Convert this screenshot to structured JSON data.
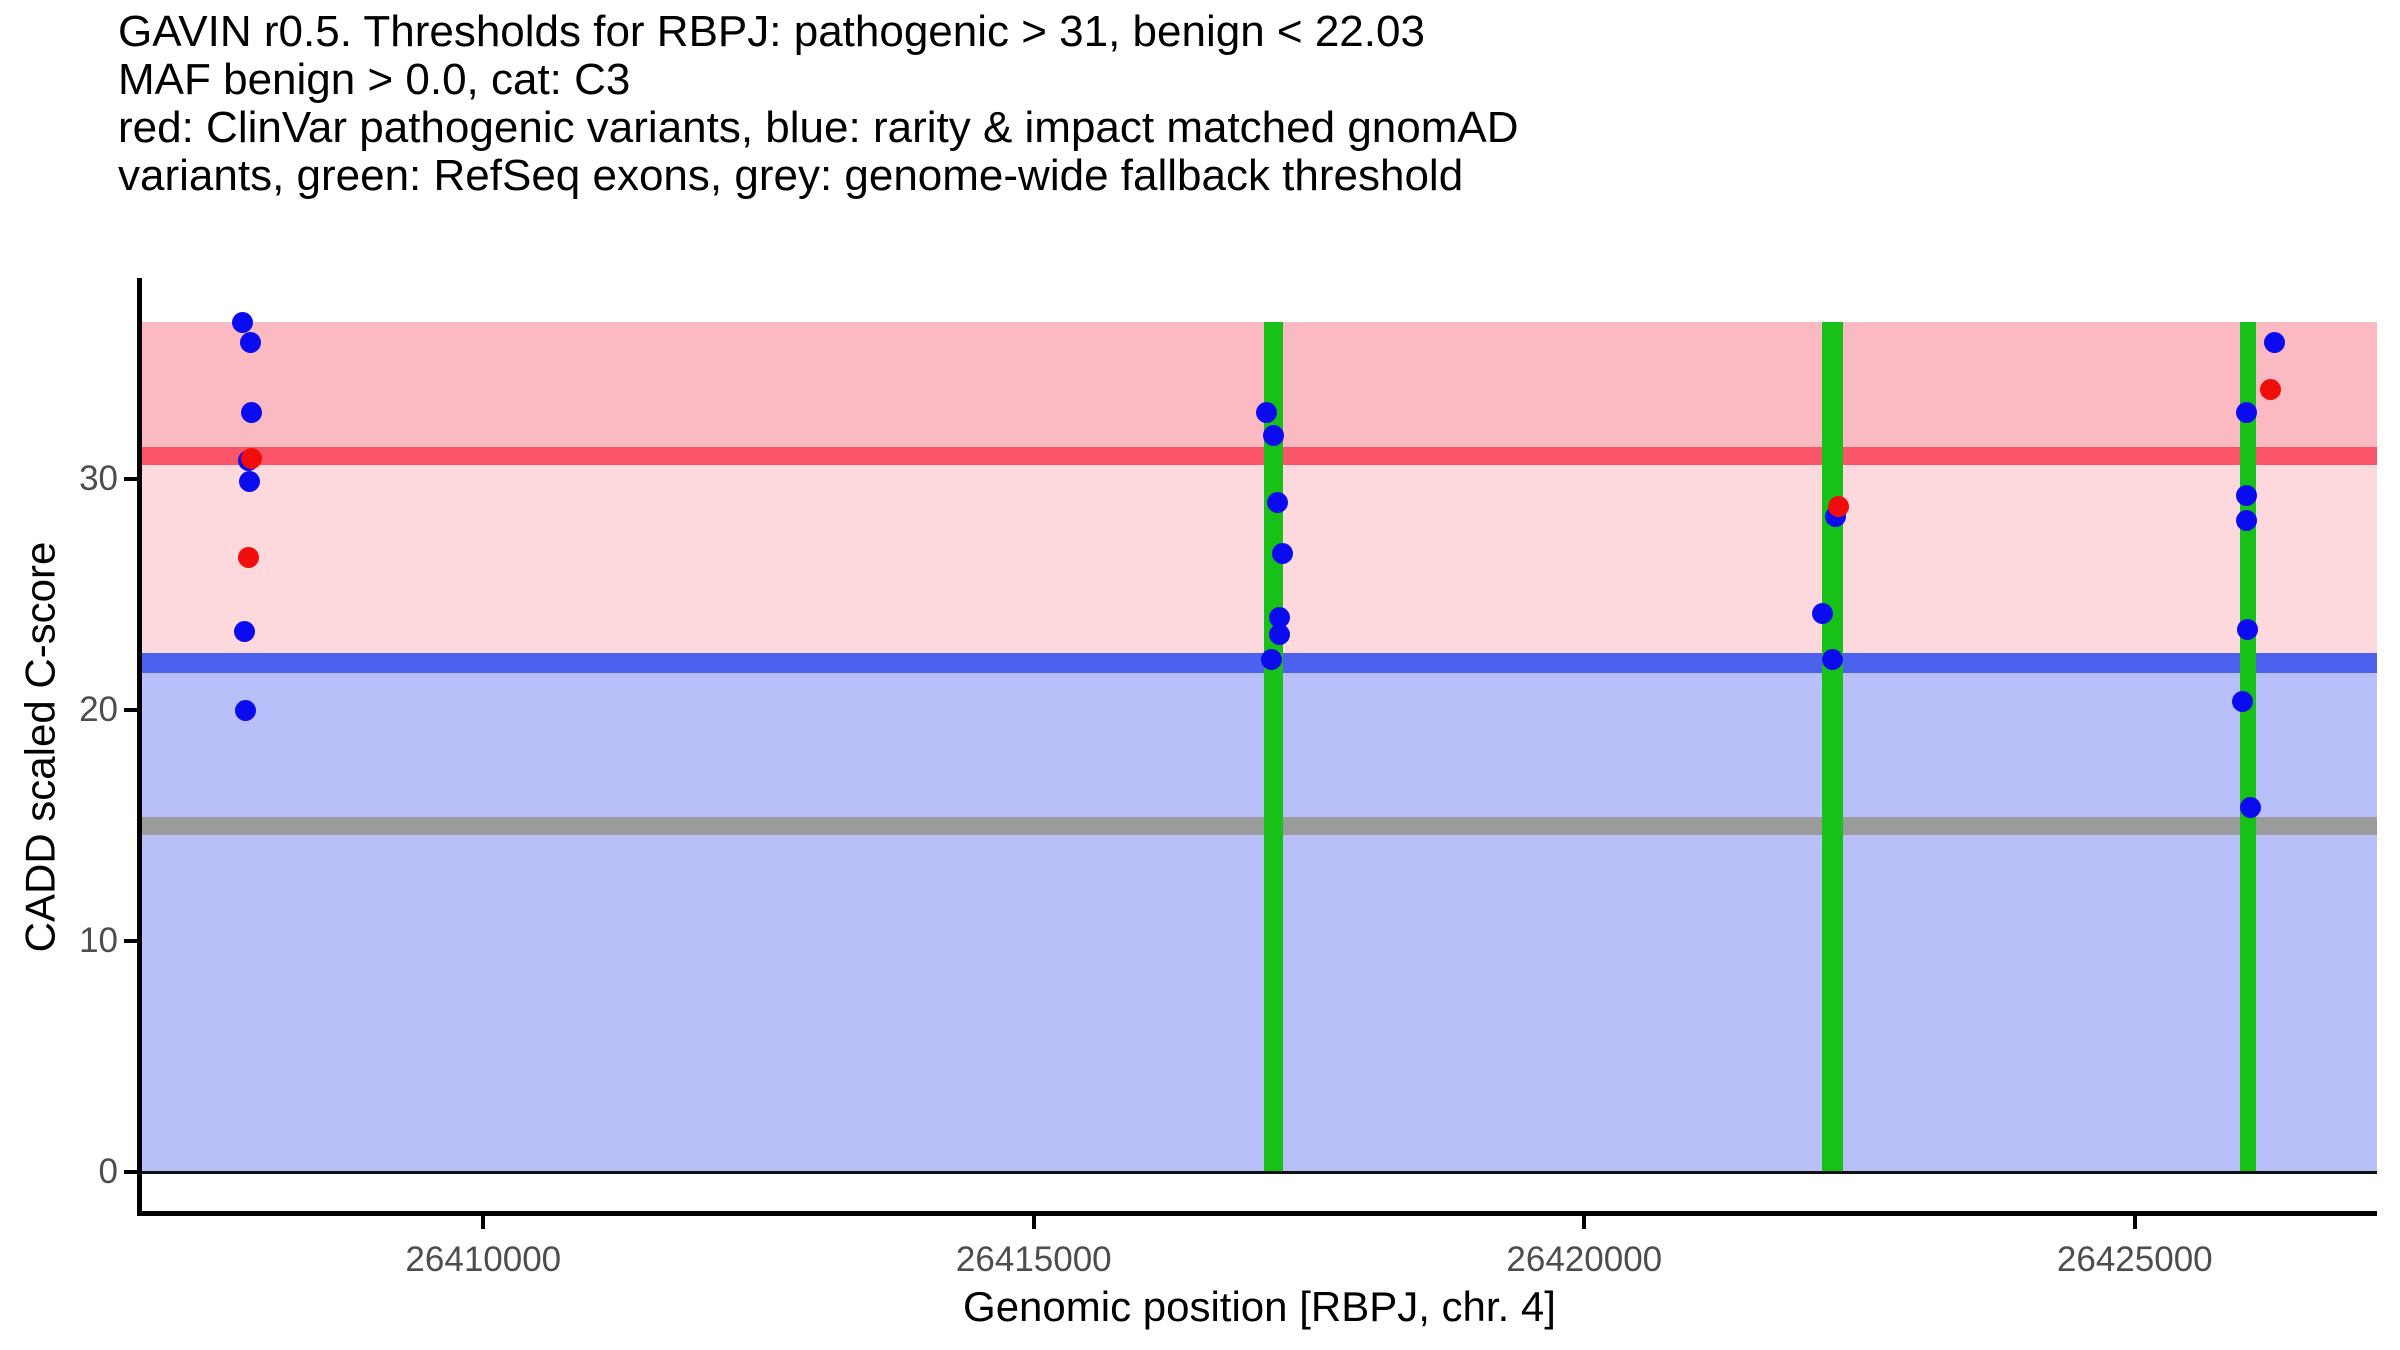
{
  "title_lines": [
    "GAVIN r0.5. Thresholds for RBPJ: pathogenic > 31, benign < 22.03",
    "MAF benign > 0.0, cat: C3",
    "red: ClinVar pathogenic variants, blue: rarity & impact matched gnomAD",
    "variants, green: RefSeq exons, grey: genome-wide fallback threshold"
  ],
  "axes": {
    "x": {
      "label": "Genomic position [RBPJ, chr. 4]"
    },
    "y": {
      "label": "CADD scaled C-score"
    }
  },
  "colors": {
    "pathogenic_region": "#FBB9C1",
    "intermediate_region": "#FDD8DD",
    "benign_region": "#B9BFF8",
    "pathogenic_line": "#FA5468",
    "benign_line": "#4C61EE",
    "fallback_line": "#9B9B9B",
    "exon": "#17C117",
    "clinvar_dot": "#F20D0D",
    "gnomad_dot": "#0B0BEF",
    "axis": "#000000",
    "tick_label": "#4d4d4d",
    "zero_line": "#111111"
  },
  "chart_data": {
    "type": "scatter",
    "title": "GAVIN r0.5. Thresholds for RBPJ: pathogenic > 31, benign < 22.03 MAF benign > 0.0, cat: C3 — red: ClinVar pathogenic variants, blue: rarity & impact matched gnomAD variants, green: RefSeq exons, grey: genome-wide fallback threshold",
    "xlabel": "Genomic position [RBPJ, chr. 4]",
    "ylabel": "CADD scaled C-score",
    "xlim": [
      26406900,
      26427200
    ],
    "ylim": [
      -1.8,
      38.62
    ],
    "x_ticks": [
      26410000,
      26415000,
      26420000,
      26425000
    ],
    "y_ticks": [
      0,
      10,
      20,
      30
    ],
    "grid": false,
    "legend_position": "none",
    "region_top": 36.8,
    "thresholds": {
      "pathogenic": 31,
      "benign": 22.03,
      "genome_wide_fallback": 15
    },
    "regions": [
      {
        "name": "pathogenic-zone",
        "from": 31,
        "to": 36.8,
        "color": "#FBB9C1"
      },
      {
        "name": "intermediate-zone",
        "from": 22.03,
        "to": 31,
        "color": "#FDD8DD"
      },
      {
        "name": "benign-zone",
        "from": 0,
        "to": 22.03,
        "color": "#B9BFF8"
      }
    ],
    "threshold_lines": [
      {
        "name": "pathogenic-threshold",
        "y": 31,
        "color": "#FA5468"
      },
      {
        "name": "benign-threshold",
        "y": 22.03,
        "color": "#4C61EE"
      },
      {
        "name": "genome-wide-fallback-threshold",
        "y": 15,
        "color": "#9B9B9B"
      }
    ],
    "exons": [
      {
        "start": 26417095,
        "end": 26417260
      },
      {
        "start": 26422160,
        "end": 26422350
      },
      {
        "start": 26425955,
        "end": 26426100
      }
    ],
    "series": [
      {
        "name": "ClinVar pathogenic variants",
        "color": "#F20D0D",
        "points": [
          [
            26407893,
            30.9
          ],
          [
            26407866,
            26.6
          ],
          [
            26422307,
            28.8
          ],
          [
            26426232,
            33.9
          ]
        ]
      },
      {
        "name": "rarity & impact matched gnomAD variants",
        "color": "#0B0BEF",
        "points": [
          [
            26407811,
            36.8
          ],
          [
            26407884,
            35.9
          ],
          [
            26407893,
            32.9
          ],
          [
            26407870,
            30.8
          ],
          [
            26407875,
            29.9
          ],
          [
            26407830,
            23.4
          ],
          [
            26407839,
            20.0
          ],
          [
            26417112,
            32.9
          ],
          [
            26417176,
            31.9
          ],
          [
            26417212,
            29.0
          ],
          [
            26417258,
            26.8
          ],
          [
            26417230,
            24.0
          ],
          [
            26417230,
            23.3
          ],
          [
            26417158,
            22.2
          ],
          [
            26422280,
            28.4
          ],
          [
            26422162,
            24.2
          ],
          [
            26422253,
            22.2
          ],
          [
            26426268,
            35.9
          ],
          [
            26426014,
            32.9
          ],
          [
            26426014,
            29.3
          ],
          [
            26426014,
            28.2
          ],
          [
            26426023,
            23.5
          ],
          [
            26425977,
            20.4
          ],
          [
            26426050,
            15.8
          ]
        ]
      }
    ]
  }
}
